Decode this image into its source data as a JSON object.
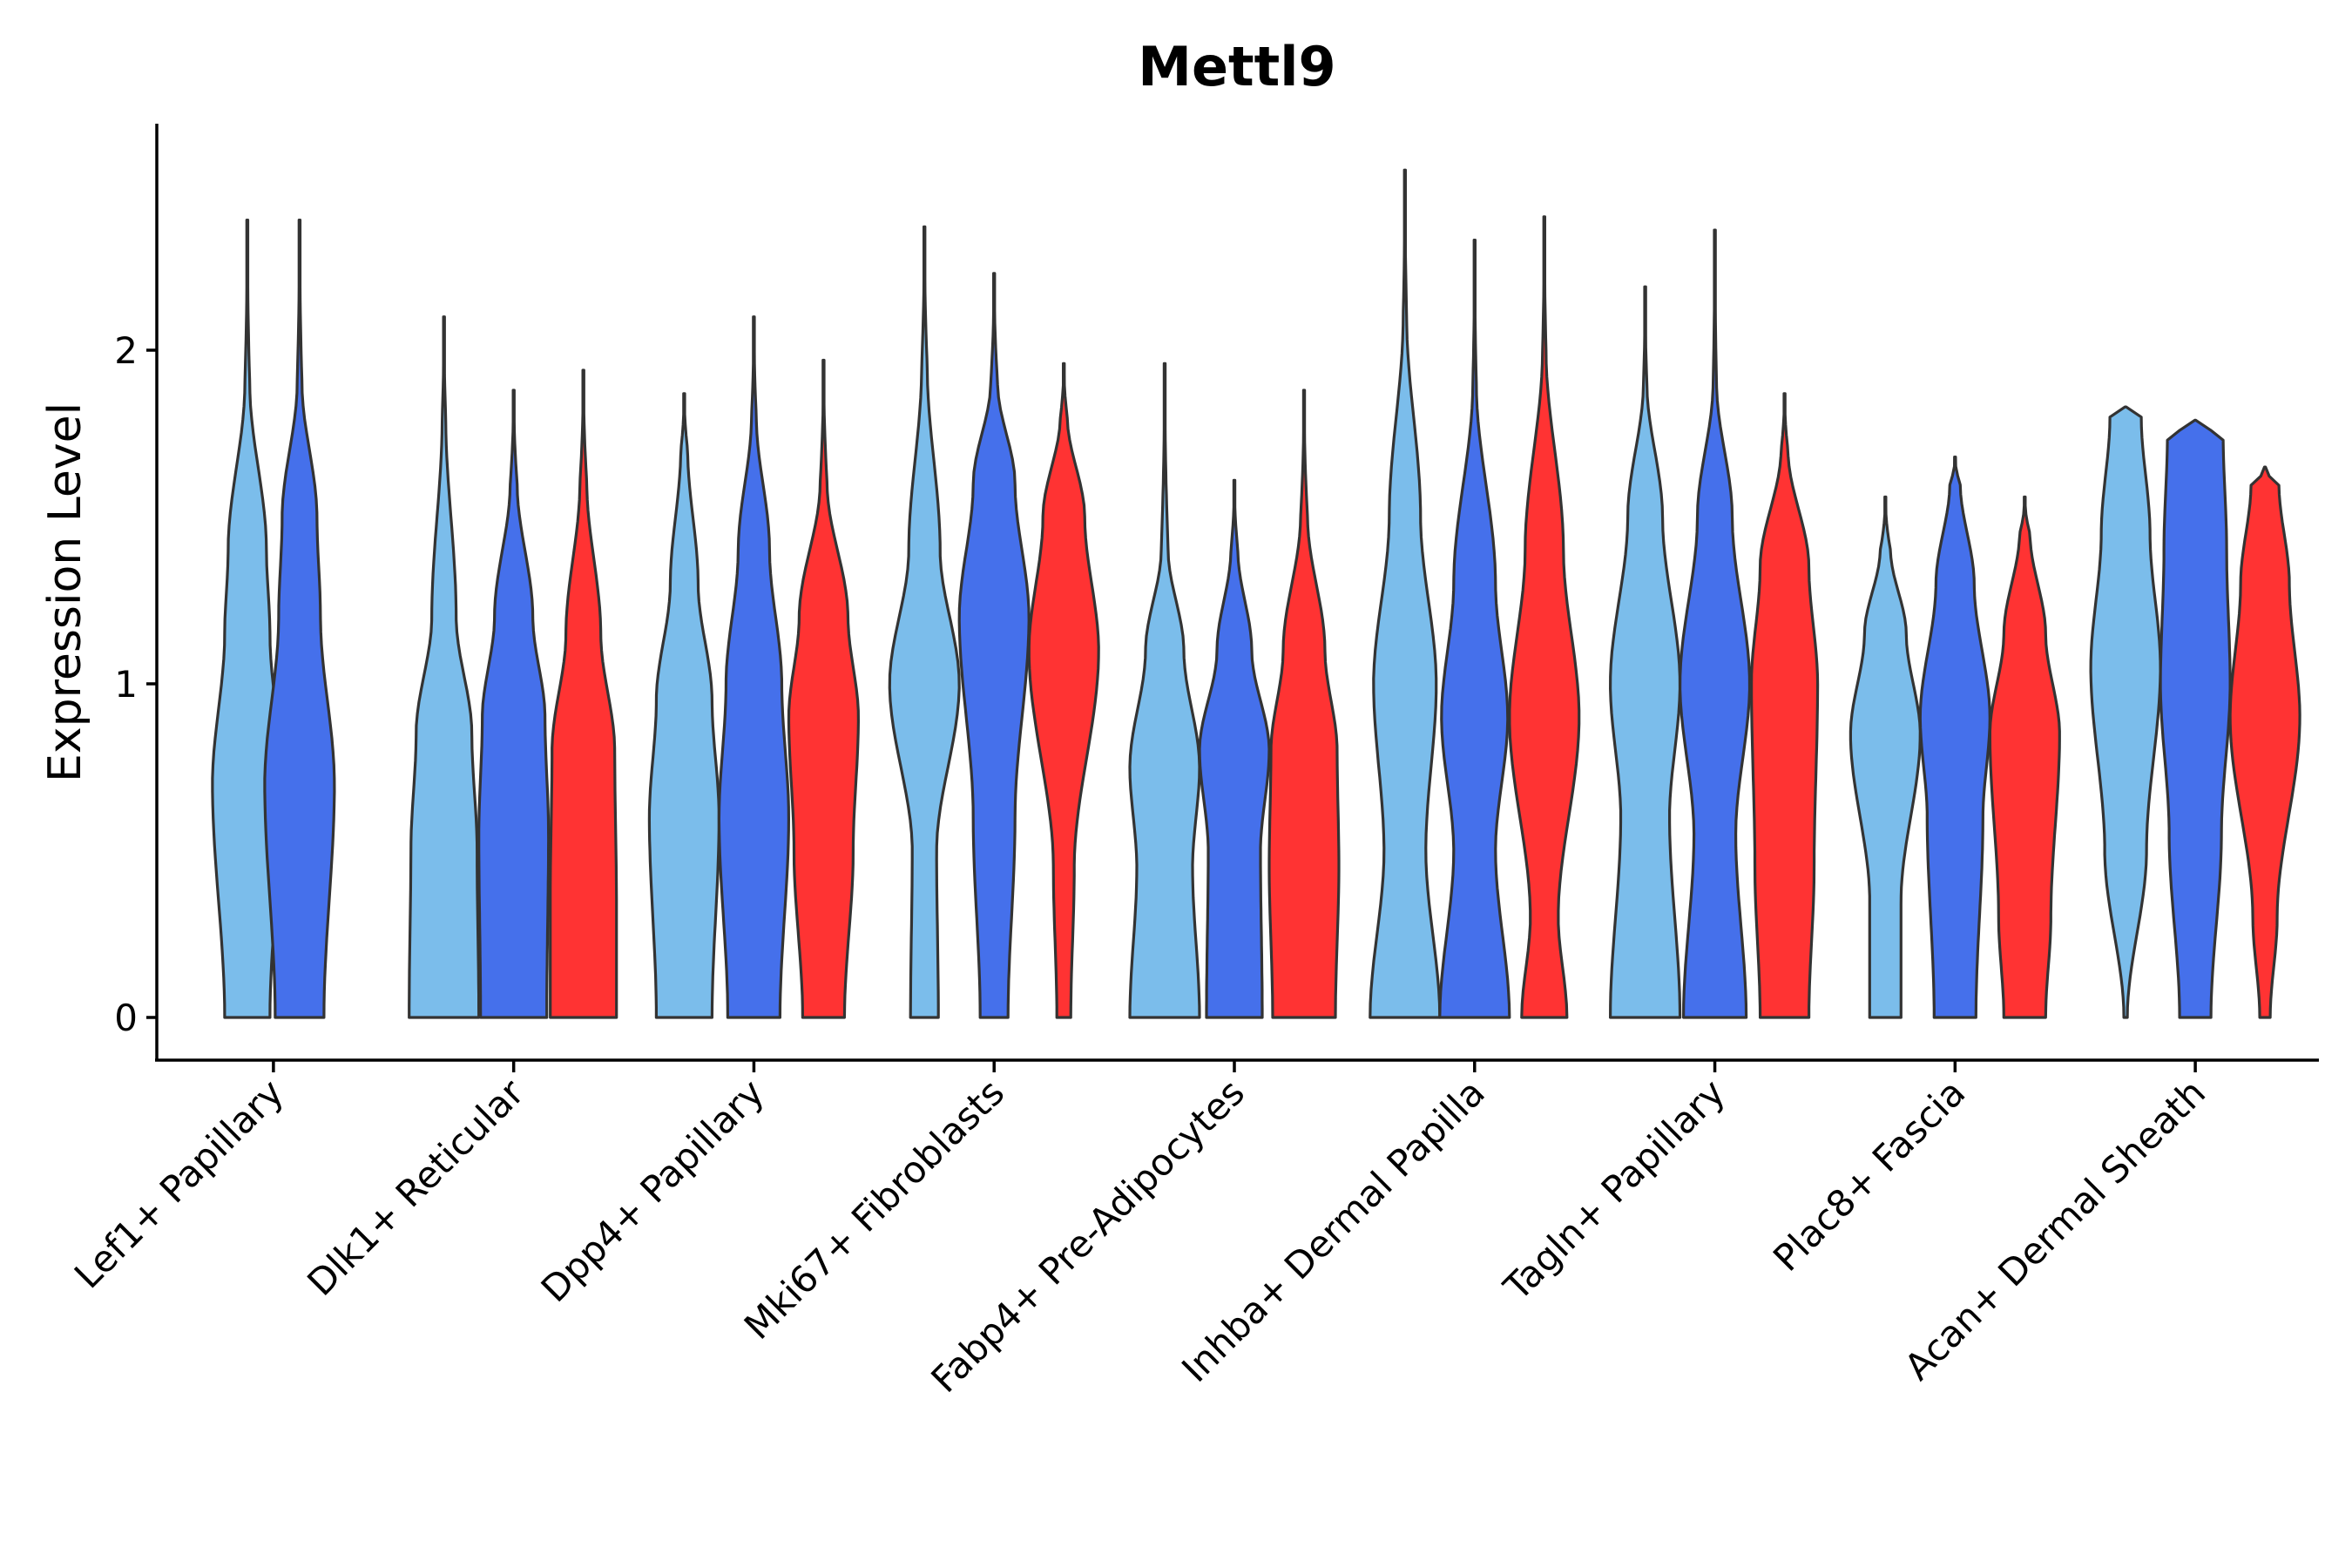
{
  "chart_data": {
    "type": "violin",
    "title": "Mettl9",
    "xlabel": "",
    "ylabel": "Expression Level",
    "ylim": [
      -0.13,
      2.7
    ],
    "yticks": [
      0,
      1,
      2
    ],
    "categories": [
      "Lef1+ Papillary",
      "Dlk1+ Reticular",
      "Dpp4+ Papillary",
      "Mki67+ Fibroblasts",
      "Fabp4+ Pre-Adipocytes",
      "Inhba+ Dermal Papilla",
      "Tagln+ Papillary",
      "Plac8+ Fascia",
      "Acan+ Dermal Sheath"
    ],
    "series_colors": [
      "#7BBDEB",
      "#4570EB",
      "#FF3333"
    ],
    "legend": "none",
    "violins": [
      {
        "category": "Lef1+ Papillary",
        "series": 0,
        "max": 2.39,
        "modes": [
          [
            0.0,
            0.65
          ],
          [
            0.7,
            1.0
          ],
          [
            1.15,
            0.65
          ],
          [
            1.4,
            0.55
          ],
          [
            1.9,
            0.07
          ]
        ]
      },
      {
        "category": "Lef1+ Papillary",
        "series": 1,
        "max": 2.39,
        "modes": [
          [
            0.0,
            0.7
          ],
          [
            0.7,
            1.0
          ],
          [
            1.2,
            0.6
          ],
          [
            1.5,
            0.5
          ],
          [
            1.9,
            0.07
          ]
        ]
      },
      {
        "category": "Dlk1+ Reticular",
        "series": 0,
        "max": 2.1,
        "modes": [
          [
            0.0,
            1.0
          ],
          [
            0.5,
            0.95
          ],
          [
            0.85,
            0.8
          ],
          [
            1.2,
            0.35
          ],
          [
            1.8,
            0.05
          ]
        ]
      },
      {
        "category": "Dlk1+ Reticular",
        "series": 1,
        "max": 1.88,
        "modes": [
          [
            0.0,
            0.95
          ],
          [
            0.55,
            1.0
          ],
          [
            0.9,
            0.9
          ],
          [
            1.2,
            0.55
          ],
          [
            1.6,
            0.1
          ]
        ]
      },
      {
        "category": "Dlk1+ Reticular",
        "series": 2,
        "max": 1.94,
        "modes": [
          [
            0.0,
            0.95
          ],
          [
            0.35,
            0.95
          ],
          [
            0.8,
            0.9
          ],
          [
            1.15,
            0.5
          ],
          [
            1.6,
            0.1
          ]
        ]
      },
      {
        "category": "Dpp4+ Papillary",
        "series": 0,
        "max": 1.87,
        "modes": [
          [
            0.0,
            0.8
          ],
          [
            0.6,
            1.0
          ],
          [
            0.95,
            0.8
          ],
          [
            1.3,
            0.4
          ],
          [
            1.7,
            0.1
          ]
        ]
      },
      {
        "category": "Dpp4+ Papillary",
        "series": 1,
        "max": 2.1,
        "modes": [
          [
            0.0,
            0.75
          ],
          [
            0.6,
            1.0
          ],
          [
            1.0,
            0.8
          ],
          [
            1.4,
            0.45
          ],
          [
            1.8,
            0.07
          ]
        ]
      },
      {
        "category": "Dpp4+ Papillary",
        "series": 2,
        "max": 1.97,
        "modes": [
          [
            0.0,
            0.6
          ],
          [
            0.5,
            0.85
          ],
          [
            0.9,
            1.0
          ],
          [
            1.2,
            0.7
          ],
          [
            1.6,
            0.1
          ]
        ]
      },
      {
        "category": "Mki67+ Fibroblasts",
        "series": 0,
        "max": 2.37,
        "modes": [
          [
            0.0,
            0.4
          ],
          [
            0.5,
            0.35
          ],
          [
            1.0,
            1.0
          ],
          [
            1.4,
            0.45
          ],
          [
            1.95,
            0.08
          ]
        ]
      },
      {
        "category": "Mki67+ Fibroblasts",
        "series": 1,
        "max": 2.23,
        "modes": [
          [
            0.0,
            0.4
          ],
          [
            0.6,
            0.6
          ],
          [
            1.2,
            1.0
          ],
          [
            1.6,
            0.6
          ],
          [
            1.9,
            0.1
          ]
        ]
      },
      {
        "category": "Mki67+ Fibroblasts",
        "series": 2,
        "max": 1.96,
        "modes": [
          [
            0.0,
            0.2
          ],
          [
            0.45,
            0.3
          ],
          [
            1.1,
            1.0
          ],
          [
            1.5,
            0.6
          ],
          [
            1.8,
            0.1
          ]
        ]
      },
      {
        "category": "Fabp4+ Pre-Adipocytes",
        "series": 0,
        "max": 1.96,
        "modes": [
          [
            0.0,
            1.0
          ],
          [
            0.45,
            0.8
          ],
          [
            0.75,
            1.0
          ],
          [
            1.1,
            0.55
          ],
          [
            1.4,
            0.1
          ]
        ]
      },
      {
        "category": "Fabp4+ Pre-Adipocytes",
        "series": 1,
        "max": 1.61,
        "modes": [
          [
            0.0,
            0.8
          ],
          [
            0.5,
            0.75
          ],
          [
            0.8,
            1.0
          ],
          [
            1.1,
            0.5
          ],
          [
            1.4,
            0.1
          ]
        ]
      },
      {
        "category": "Fabp4+ Pre-Adipocytes",
        "series": 2,
        "max": 1.88,
        "modes": [
          [
            0.0,
            0.9
          ],
          [
            0.45,
            1.0
          ],
          [
            0.8,
            0.95
          ],
          [
            1.1,
            0.6
          ],
          [
            1.5,
            0.1
          ]
        ]
      },
      {
        "category": "Inhba+ Dermal Papilla",
        "series": 0,
        "max": 2.54,
        "modes": [
          [
            0.0,
            1.0
          ],
          [
            0.5,
            0.6
          ],
          [
            1.0,
            0.9
          ],
          [
            1.5,
            0.45
          ],
          [
            2.1,
            0.05
          ]
        ]
      },
      {
        "category": "Inhba+ Dermal Papilla",
        "series": 1,
        "max": 2.33,
        "modes": [
          [
            0.0,
            1.0
          ],
          [
            0.5,
            0.6
          ],
          [
            0.9,
            0.95
          ],
          [
            1.3,
            0.6
          ],
          [
            1.9,
            0.05
          ]
        ]
      },
      {
        "category": "Inhba+ Dermal Papilla",
        "series": 2,
        "max": 2.4,
        "modes": [
          [
            0.0,
            0.65
          ],
          [
            0.3,
            0.4
          ],
          [
            0.9,
            1.0
          ],
          [
            1.4,
            0.55
          ],
          [
            2.0,
            0.05
          ]
        ]
      },
      {
        "category": "Tagln+ Papillary",
        "series": 0,
        "max": 2.19,
        "modes": [
          [
            0.0,
            1.0
          ],
          [
            0.6,
            0.7
          ],
          [
            1.0,
            1.0
          ],
          [
            1.5,
            0.5
          ],
          [
            1.9,
            0.05
          ]
        ]
      },
      {
        "category": "Tagln+ Papillary",
        "series": 1,
        "max": 2.36,
        "modes": [
          [
            0.0,
            0.9
          ],
          [
            0.55,
            0.6
          ],
          [
            1.0,
            1.0
          ],
          [
            1.5,
            0.5
          ],
          [
            1.9,
            0.05
          ]
        ]
      },
      {
        "category": "Tagln+ Papillary",
        "series": 2,
        "max": 1.87,
        "modes": [
          [
            0.0,
            0.7
          ],
          [
            0.45,
            0.85
          ],
          [
            1.0,
            0.95
          ],
          [
            1.35,
            0.7
          ],
          [
            1.7,
            0.1
          ]
        ]
      },
      {
        "category": "Plac8+ Fascia",
        "series": 0,
        "max": 1.56,
        "modes": [
          [
            0.0,
            0.45
          ],
          [
            0.35,
            0.45
          ],
          [
            0.85,
            1.0
          ],
          [
            1.15,
            0.6
          ],
          [
            1.4,
            0.15
          ]
        ]
      },
      {
        "category": "Plac8+ Fascia",
        "series": 1,
        "max": 1.68,
        "modes": [
          [
            0.0,
            0.6
          ],
          [
            0.6,
            0.8
          ],
          [
            0.9,
            1.0
          ],
          [
            1.3,
            0.55
          ],
          [
            1.6,
            0.15
          ]
        ]
      },
      {
        "category": "Plac8+ Fascia",
        "series": 2,
        "max": 1.56,
        "modes": [
          [
            0.0,
            0.6
          ],
          [
            0.3,
            0.75
          ],
          [
            0.85,
            1.0
          ],
          [
            1.15,
            0.6
          ],
          [
            1.45,
            0.15
          ]
        ]
      },
      {
        "category": "Acan+ Dermal Sheath",
        "series": 0,
        "max": 1.83,
        "modes": [
          [
            0.0,
            0.05
          ],
          [
            0.5,
            0.6
          ],
          [
            1.05,
            1.0
          ],
          [
            1.45,
            0.7
          ],
          [
            1.8,
            0.45
          ]
        ]
      },
      {
        "category": "Acan+ Dermal Sheath",
        "series": 1,
        "max": 1.79,
        "modes": [
          [
            0.0,
            0.45
          ],
          [
            0.55,
            0.75
          ],
          [
            1.0,
            1.0
          ],
          [
            1.4,
            0.9
          ],
          [
            1.75,
            0.8
          ]
        ]
      },
      {
        "category": "Acan+ Dermal Sheath",
        "series": 2,
        "max": 1.65,
        "modes": [
          [
            0.0,
            0.15
          ],
          [
            0.3,
            0.35
          ],
          [
            0.9,
            1.0
          ],
          [
            1.3,
            0.7
          ],
          [
            1.6,
            0.4
          ]
        ]
      }
    ]
  }
}
